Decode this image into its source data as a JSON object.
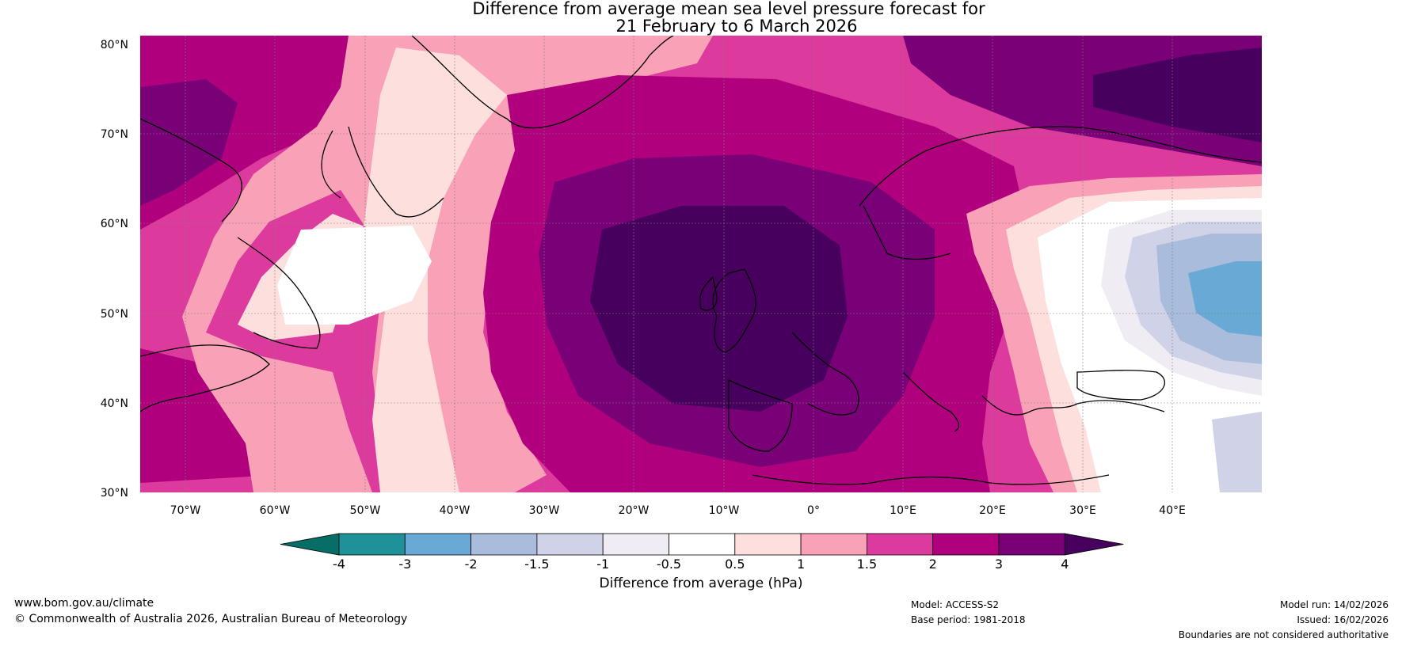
{
  "title": {
    "line1": "Difference from average mean sea level pressure forecast for",
    "line2": "21 February to 6 March 2026"
  },
  "map": {
    "lat_labels": [
      "80°N",
      "70°N",
      "60°N",
      "50°N",
      "40°N",
      "30°N"
    ],
    "lon_labels": [
      "70°W",
      "60°W",
      "50°W",
      "40°W",
      "30°W",
      "20°W",
      "10°W",
      "0°",
      "10°E",
      "20°E",
      "30°E",
      "40°E"
    ],
    "lat_range": [
      30,
      81
    ],
    "lon_range": [
      -75,
      50
    ],
    "anomaly_summary": "Strong positive anomaly (above +4 hPa) centred west of Ireland and the British Isles; weak negative anomaly (around -2 hPa) over western Russia / Ukraine"
  },
  "colorbar": {
    "ticks": [
      "-4",
      "-3",
      "-2",
      "-1.5",
      "-1",
      "-0.5",
      "0.5",
      "1",
      "1.5",
      "2",
      "3",
      "4"
    ],
    "colors": [
      "#076e67",
      "#1e9298",
      "#68aad5",
      "#a9bcdc",
      "#d0d3e7",
      "#efecf4",
      "#ffffff",
      "#fde0de",
      "#f9a1b7",
      "#dc3a9c",
      "#b0007d",
      "#790077",
      "#48005f"
    ],
    "label": "Difference from average (hPa)"
  },
  "footer": {
    "website": "www.bom.gov.au/climate",
    "copyright": "© Commonwealth of Australia 2026, Australian Bureau of Meteorology",
    "model": "Model: ACCESS-S2",
    "base_period": "Base period: 1981-2018",
    "model_run": "Model run: 14/02/2026",
    "issued": "Issued: 16/02/2026",
    "disclaimer": "Boundaries are not considered authoritative"
  }
}
